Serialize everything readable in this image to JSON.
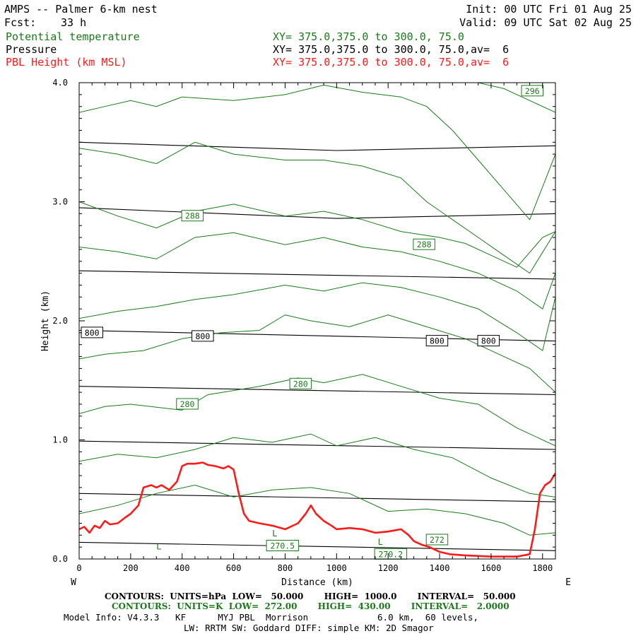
{
  "header": {
    "title": "AMPS -- Palmer 6-km nest",
    "fcst_label": "Fcst:",
    "fcst_value": "33 h",
    "init": "Init: 00 UTC Fri 01 Aug 25",
    "valid": "Valid: 09 UTC Sat 02 Aug 25"
  },
  "fields": [
    {
      "name": "Potential temperature",
      "xy": "XY= 375.0,375.0 to 300.0, 75.0",
      "color": "#1a7a1a"
    },
    {
      "name": "Pressure",
      "xy": "XY= 375.0,375.0 to 300.0, 75.0,av=  6",
      "color": "#000000"
    },
    {
      "name": "PBL Height (km MSL)",
      "xy": "XY= 375.0,375.0 to 300.0, 75.0,av=  6",
      "color": "#ff1a1a"
    }
  ],
  "footer": {
    "pressure_contours": "CONTOURS:  UNITS=hPa  LOW=   50.000       HIGH=  1000.0       INTERVAL=   50.000",
    "theta_contours": "CONTOURS:  UNITS=K  LOW=  272.00       HIGH=  430.00       INTERVAL=   2.0000",
    "model_info_1": "Model Info: V4.3.3   KF      MYJ PBL  Morrison             6.0 km,  60 levels,",
    "model_info_2": "LW: RRTM SW: Goddard DIFF: simple KM: 2D Smagor"
  },
  "chart_data": {
    "type": "line",
    "title": "AMPS -- Palmer 6-km nest",
    "xlabel": "Distance (km)",
    "ylabel": "Height (km)",
    "xlim": [
      0,
      1850
    ],
    "ylim": [
      0,
      4.0
    ],
    "x_ticks": [
      "0",
      "200",
      "400",
      "600",
      "800",
      "1000",
      "1200",
      "1400",
      "1600",
      "1800"
    ],
    "y_ticks": [
      "0.0",
      "1.0",
      "2.0",
      "3.0",
      "4.0"
    ],
    "x_left_end": "W",
    "x_right_end": "E",
    "pressure_isobars_km": [
      {
        "x": [
          0,
          1850
        ],
        "y": [
          0.14,
          0.07
        ]
      },
      {
        "x": [
          0,
          1850
        ],
        "y": [
          0.55,
          0.48
        ]
      },
      {
        "x": [
          0,
          1850
        ],
        "y": [
          0.99,
          0.92
        ]
      },
      {
        "x": [
          0,
          1850
        ],
        "y": [
          1.45,
          1.38
        ]
      },
      {
        "x": [
          0,
          1850
        ],
        "y": [
          1.92,
          1.83
        ]
      },
      {
        "x": [
          0,
          1850
        ],
        "y": [
          2.42,
          2.35
        ]
      },
      {
        "x": [
          0,
          1000,
          1850
        ],
        "y": [
          2.95,
          2.86,
          2.9
        ]
      },
      {
        "x": [
          0,
          1000,
          1850
        ],
        "y": [
          3.5,
          3.43,
          3.47
        ]
      }
    ],
    "pressure_labels": [
      {
        "text": "800",
        "x": 50,
        "y": 1.9
      },
      {
        "text": "800",
        "x": 480,
        "y": 1.87
      },
      {
        "text": "800",
        "x": 1390,
        "y": 1.83
      },
      {
        "text": "800",
        "x": 1590,
        "y": 1.83
      }
    ],
    "theta_isentropes": [
      {
        "x": [
          0,
          150,
          300,
          450,
          600,
          750,
          900,
          1050,
          1200,
          1350,
          1500,
          1650,
          1750,
          1850
        ],
        "y": [
          0.38,
          0.45,
          0.55,
          0.62,
          0.52,
          0.58,
          0.6,
          0.55,
          0.4,
          0.42,
          0.38,
          0.3,
          0.2,
          0.22
        ]
      },
      {
        "x": [
          0,
          150,
          300,
          450,
          600,
          750,
          900,
          1000,
          1150,
          1300,
          1450,
          1600,
          1750,
          1850
        ],
        "y": [
          0.82,
          0.88,
          0.85,
          0.92,
          1.02,
          0.98,
          1.05,
          0.95,
          1.02,
          0.92,
          0.85,
          0.68,
          0.55,
          0.52
        ]
      },
      {
        "x": [
          0,
          100,
          200,
          400,
          500,
          700,
          850,
          950,
          1100,
          1250,
          1400,
          1550,
          1700,
          1850
        ],
        "y": [
          1.22,
          1.28,
          1.3,
          1.25,
          1.38,
          1.45,
          1.52,
          1.48,
          1.55,
          1.45,
          1.35,
          1.3,
          1.1,
          0.95
        ]
      },
      {
        "x": [
          0,
          100,
          250,
          400,
          550,
          700,
          800,
          900,
          1050,
          1200,
          1350,
          1500,
          1650,
          1750,
          1850
        ],
        "y": [
          1.68,
          1.72,
          1.75,
          1.85,
          1.9,
          1.92,
          2.05,
          2.0,
          1.95,
          2.05,
          1.95,
          1.85,
          1.7,
          1.6,
          1.4
        ]
      },
      {
        "x": [
          0,
          150,
          300,
          450,
          600,
          800,
          950,
          1100,
          1250,
          1400,
          1550,
          1700,
          1800,
          1850
        ],
        "y": [
          2.02,
          2.08,
          2.12,
          2.18,
          2.22,
          2.3,
          2.25,
          2.32,
          2.28,
          2.2,
          2.1,
          1.9,
          1.75,
          2.2
        ]
      },
      {
        "x": [
          0,
          150,
          300,
          450,
          600,
          800,
          950,
          1100,
          1250,
          1400,
          1550,
          1700,
          1800,
          1850
        ],
        "y": [
          2.62,
          2.58,
          2.52,
          2.7,
          2.74,
          2.64,
          2.7,
          2.62,
          2.58,
          2.5,
          2.4,
          2.25,
          2.1,
          2.4
        ]
      },
      {
        "x": [
          0,
          150,
          300,
          450,
          600,
          800,
          950,
          1100,
          1250,
          1400,
          1500,
          1600,
          1700,
          1800,
          1850
        ],
        "y": [
          3.0,
          2.88,
          2.78,
          2.92,
          2.98,
          2.88,
          2.92,
          2.85,
          2.75,
          2.7,
          2.65,
          2.55,
          2.45,
          2.7,
          2.75
        ]
      },
      {
        "x": [
          0,
          150,
          300,
          450,
          600,
          800,
          950,
          1100,
          1250,
          1350,
          1450,
          1550,
          1650,
          1750,
          1850
        ],
        "y": [
          3.45,
          3.4,
          3.32,
          3.5,
          3.4,
          3.35,
          3.35,
          3.3,
          3.2,
          3.0,
          2.85,
          2.7,
          2.55,
          2.4,
          2.75
        ]
      },
      {
        "x": [
          0,
          100,
          200,
          300,
          400,
          600,
          800,
          950,
          1100,
          1250,
          1350,
          1450,
          1550,
          1650,
          1750,
          1850
        ],
        "y": [
          3.75,
          3.8,
          3.85,
          3.8,
          3.88,
          3.85,
          3.9,
          3.98,
          3.92,
          3.88,
          3.8,
          3.6,
          3.35,
          3.1,
          2.85,
          3.4
        ]
      },
      {
        "x": [
          1550,
          1650,
          1750,
          1850
        ],
        "y": [
          4.0,
          3.95,
          3.85,
          3.75
        ]
      }
    ],
    "theta_labels": [
      {
        "text": "296",
        "x": 1760,
        "y": 3.93
      },
      {
        "text": "288",
        "x": 440,
        "y": 2.88
      },
      {
        "text": "288",
        "x": 1340,
        "y": 2.64
      },
      {
        "text": "280",
        "x": 860,
        "y": 1.47
      },
      {
        "text": "280",
        "x": 420,
        "y": 1.3
      },
      {
        "text": "272",
        "x": 1390,
        "y": 0.16
      },
      {
        "text": "270.5",
        "x": 790,
        "y": 0.11
      },
      {
        "text": "270.2",
        "x": 1210,
        "y": 0.04
      }
    ],
    "low_markers": [
      {
        "text": "L",
        "x": 310,
        "y": 0.08
      },
      {
        "text": "L",
        "x": 760,
        "y": 0.19
      },
      {
        "text": "L",
        "x": 1170,
        "y": 0.12
      }
    ],
    "series": [
      {
        "name": "PBL Height (km MSL)",
        "color": "#ff1a1a",
        "x": [
          0,
          20,
          40,
          60,
          80,
          100,
          120,
          150,
          180,
          200,
          230,
          250,
          280,
          300,
          320,
          350,
          380,
          400,
          420,
          450,
          480,
          500,
          530,
          560,
          580,
          600,
          620,
          640,
          660,
          700,
          750,
          800,
          850,
          880,
          900,
          920,
          950,
          980,
          1000,
          1050,
          1100,
          1150,
          1200,
          1250,
          1280,
          1300,
          1330,
          1360,
          1400,
          1440,
          1500,
          1600,
          1700,
          1750,
          1770,
          1790,
          1810,
          1830,
          1850
        ],
        "y": [
          0.25,
          0.27,
          0.22,
          0.28,
          0.26,
          0.32,
          0.29,
          0.3,
          0.35,
          0.38,
          0.45,
          0.6,
          0.62,
          0.6,
          0.62,
          0.58,
          0.65,
          0.78,
          0.8,
          0.8,
          0.81,
          0.79,
          0.78,
          0.76,
          0.78,
          0.75,
          0.55,
          0.38,
          0.32,
          0.3,
          0.28,
          0.25,
          0.3,
          0.38,
          0.45,
          0.38,
          0.32,
          0.28,
          0.25,
          0.26,
          0.25,
          0.22,
          0.23,
          0.25,
          0.2,
          0.15,
          0.12,
          0.1,
          0.06,
          0.04,
          0.03,
          0.02,
          0.02,
          0.04,
          0.25,
          0.55,
          0.62,
          0.65,
          0.72
        ]
      }
    ]
  }
}
